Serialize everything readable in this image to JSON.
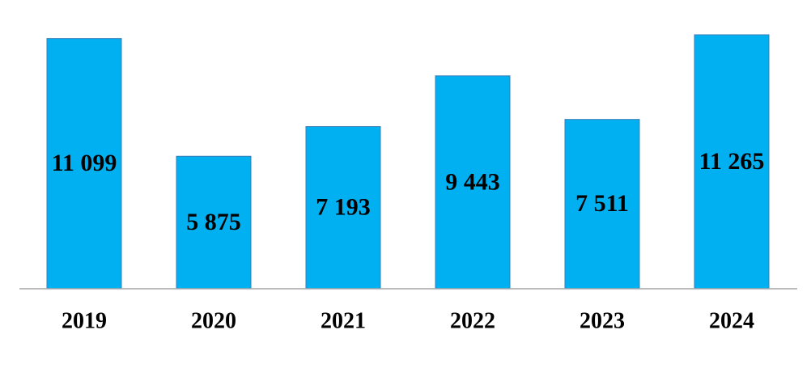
{
  "chart_data": {
    "type": "bar",
    "categories": [
      "2019",
      "2020",
      "2021",
      "2022",
      "2023",
      "2024"
    ],
    "values": [
      11099,
      5875,
      7193,
      9443,
      7511,
      11265
    ],
    "value_labels": [
      "11 099",
      "5 875",
      "7 193",
      "9 443",
      "7 511",
      "11 265"
    ],
    "color": "#00b0f0",
    "ylim": [
      0,
      12000
    ]
  }
}
